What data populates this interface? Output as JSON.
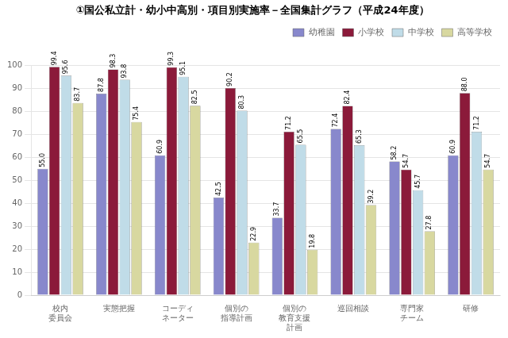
{
  "chart_data": {
    "type": "bar",
    "title": "①国公私立計・幼小中高別・項目別実施率－全国集計グラフ（平成24年度）",
    "categories": [
      "校内\n委員会",
      "実態把握",
      "コーディ\nネーター",
      "個別の\n指導計画",
      "個別の\n教育支援\n計画",
      "巡回相談",
      "専門家\nチーム",
      "研修"
    ],
    "series": [
      {
        "name": "幼稚園",
        "color": "#8888cc",
        "values": [
          55.0,
          87.8,
          60.9,
          42.5,
          33.7,
          72.4,
          58.2,
          60.9
        ],
        "value_labels": [
          "55.0",
          "87.8",
          "60.9",
          "42.5",
          "33.7",
          "72.4",
          "58.2",
          "60.9"
        ]
      },
      {
        "name": "小学校",
        "color": "#8b1a3a",
        "values": [
          99.4,
          98.3,
          99.3,
          90.2,
          71.2,
          82.4,
          54.7,
          88.0
        ],
        "value_labels": [
          "99.4",
          "98.3",
          "99.3",
          "90.2",
          "71.2",
          "82.4",
          "54.7",
          "88.0"
        ]
      },
      {
        "name": "中学校",
        "color": "#c0dce8",
        "values": [
          95.6,
          93.8,
          95.1,
          80.3,
          65.5,
          65.3,
          45.7,
          71.2
        ],
        "value_labels": [
          "95.6",
          "93.8",
          "95.1",
          "80.3",
          "65.5",
          "65.3",
          "45.7",
          "71.2"
        ]
      },
      {
        "name": "高等学校",
        "color": "#d8d8a0",
        "values": [
          83.7,
          75.4,
          82.5,
          22.9,
          19.8,
          39.2,
          27.8,
          54.7
        ],
        "value_labels": [
          "83.7",
          "75.4",
          "82.5",
          "22.9",
          "19.8",
          "39.2",
          "27.8",
          "54.7"
        ]
      }
    ],
    "ylim": [
      0,
      100
    ],
    "yticks": [
      0,
      10,
      20,
      30,
      40,
      50,
      60,
      70,
      80,
      90,
      100
    ],
    "grid": true,
    "legend": "upper right",
    "data_labels": true
  }
}
